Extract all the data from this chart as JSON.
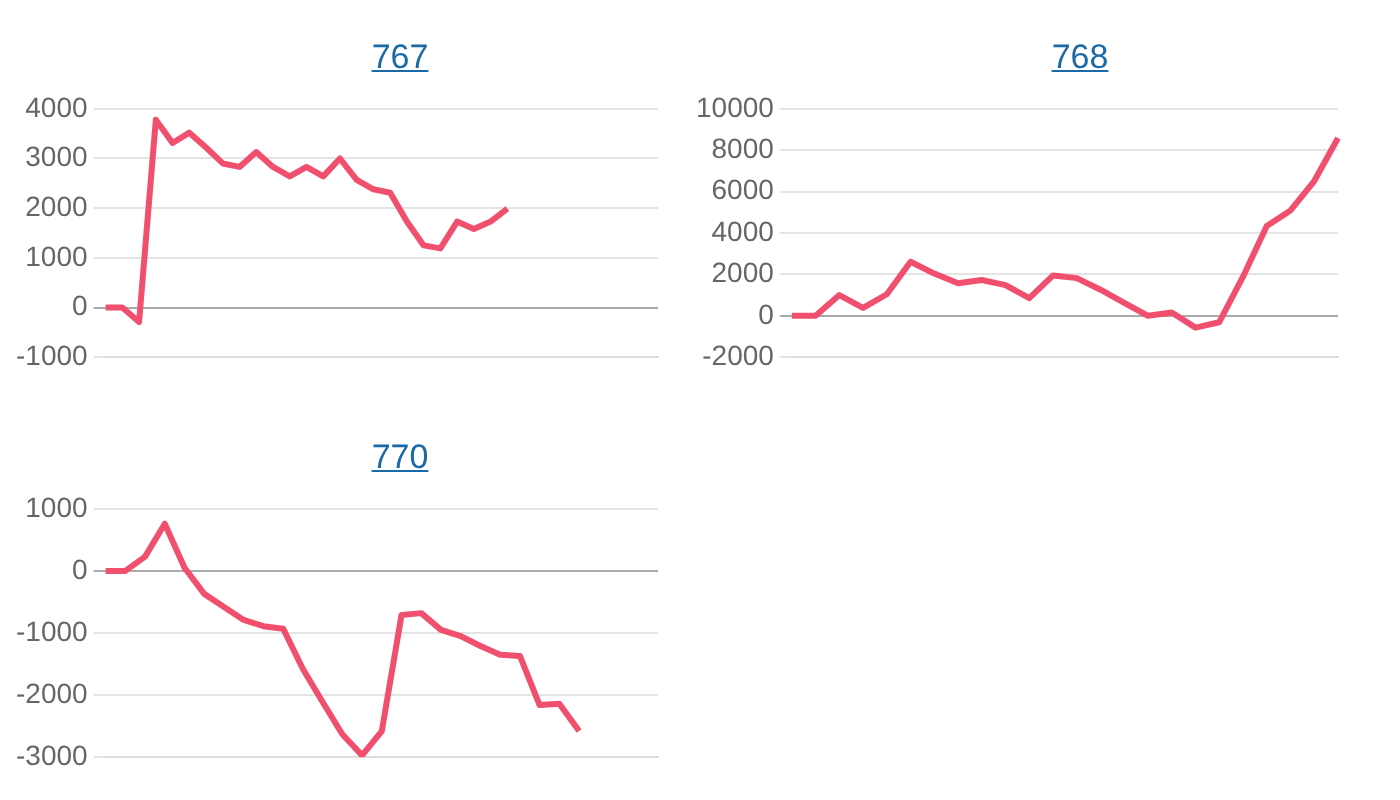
{
  "chart_data": [
    {
      "type": "line",
      "title": "767",
      "categories": [
        null,
        null,
        null,
        null,
        null,
        null,
        null,
        null,
        null,
        null,
        null,
        null,
        null,
        null,
        null,
        null,
        null,
        null,
        null,
        null,
        null,
        null,
        null,
        null,
        null,
        null,
        null,
        null,
        null,
        null,
        null,
        null,
        null,
        null
      ],
      "series": [
        {
          "color": "#f0506e",
          "values": [
            0,
            0,
            -290,
            3780,
            3310,
            3520,
            3220,
            2900,
            2830,
            3130,
            2830,
            2640,
            2830,
            2640,
            3000,
            2570,
            2380,
            2310,
            1730,
            1250,
            1190,
            1730,
            1580,
            1730,
            1990,
            null,
            null,
            null,
            null,
            null,
            null,
            null,
            null,
            null
          ]
        }
      ],
      "ylim": [
        -1000,
        4000
      ],
      "yticks": [
        -1000,
        0,
        1000,
        2000,
        3000,
        4000
      ],
      "grid": "y",
      "tick_labels": "y",
      "legend": false,
      "marker": "none"
    },
    {
      "type": "line",
      "title": "768",
      "categories": [
        null,
        null,
        null,
        null,
        null,
        null,
        null,
        null,
        null,
        null,
        null,
        null,
        null,
        null,
        null,
        null,
        null,
        null,
        null,
        null,
        null,
        null,
        null,
        null
      ],
      "series": [
        {
          "color": "#f0506e",
          "values": [
            0,
            0,
            1000,
            380,
            1040,
            2610,
            2040,
            1570,
            1730,
            1480,
            850,
            1950,
            1820,
            1260,
            630,
            0,
            160,
            -570,
            -310,
            1890,
            4340,
            5090,
            6510,
            8590
          ]
        }
      ],
      "ylim": [
        -2000,
        10000
      ],
      "yticks": [
        -2000,
        0,
        2000,
        4000,
        6000,
        8000,
        10000
      ],
      "grid": "y",
      "tick_labels": "y",
      "legend": false,
      "marker": "none"
    },
    {
      "type": "line",
      "title": "770",
      "categories": [
        null,
        null,
        null,
        null,
        null,
        null,
        null,
        null,
        null,
        null,
        null,
        null,
        null,
        null,
        null,
        null,
        null,
        null,
        null,
        null,
        null,
        null,
        null,
        null,
        null,
        null,
        null,
        null,
        null
      ],
      "series": [
        {
          "color": "#f0506e",
          "values": [
            0,
            0,
            230,
            760,
            50,
            -370,
            -580,
            -790,
            -890,
            -930,
            -1580,
            -2110,
            -2630,
            -2970,
            -2580,
            -710,
            -680,
            -950,
            -1050,
            -1210,
            -1350,
            -1370,
            -2160,
            -2140,
            -2580,
            null,
            null,
            null,
            null
          ]
        }
      ],
      "ylim": [
        -3000,
        1000
      ],
      "yticks": [
        -3000,
        -2000,
        -1000,
        0,
        1000
      ],
      "grid": "y",
      "tick_labels": "y",
      "legend": false,
      "marker": "none"
    }
  ]
}
